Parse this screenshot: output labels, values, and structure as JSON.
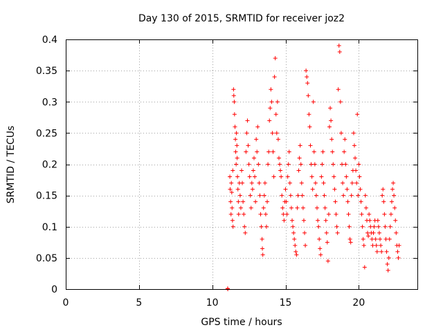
{
  "chart_data": {
    "type": "scatter",
    "title": "Day 130 of 2015, SRMTID for receiver joz2",
    "xlabel": "GPS time / hours",
    "ylabel": "SRMTID / TECUs",
    "xlim": [
      0,
      24
    ],
    "ylim": [
      0,
      0.4
    ],
    "xticks": [
      0,
      5,
      10,
      15,
      20
    ],
    "xtick_labels": [
      "0",
      "5",
      "10",
      "15",
      "20"
    ],
    "yticks": [
      0,
      0.05,
      0.1,
      0.15,
      0.2,
      0.25,
      0.3,
      0.35,
      0.4
    ],
    "ytick_labels": [
      "0",
      "0.05",
      "0.1",
      "0.15",
      "0.2",
      "0.25",
      "0.3",
      "0.35",
      "0.4"
    ],
    "grid": true,
    "legend": "none",
    "marker": "plus",
    "color": "#ff0000",
    "series": [
      {
        "points": [
          [
            11.05,
            0.001
          ],
          [
            11.06,
            0.0
          ],
          [
            11.2,
            0.18
          ],
          [
            11.22,
            0.16
          ],
          [
            11.25,
            0.14
          ],
          [
            11.28,
            0.12
          ],
          [
            11.3,
            0.17
          ],
          [
            11.33,
            0.155
          ],
          [
            11.35,
            0.13
          ],
          [
            11.38,
            0.11
          ],
          [
            11.4,
            0.19
          ],
          [
            11.42,
            0.1
          ],
          [
            11.45,
            0.32
          ],
          [
            11.47,
            0.31
          ],
          [
            11.5,
            0.3
          ],
          [
            11.52,
            0.28
          ],
          [
            11.55,
            0.26
          ],
          [
            11.58,
            0.24
          ],
          [
            11.6,
            0.22
          ],
          [
            11.63,
            0.2
          ],
          [
            11.65,
            0.25
          ],
          [
            11.68,
            0.23
          ],
          [
            11.7,
            0.21
          ],
          [
            11.72,
            0.18
          ],
          [
            11.75,
            0.16
          ],
          [
            11.78,
            0.14
          ],
          [
            11.8,
            0.12
          ],
          [
            11.85,
            0.17
          ],
          [
            11.9,
            0.15
          ],
          [
            11.95,
            0.13
          ],
          [
            12.0,
            0.19
          ],
          [
            12.05,
            0.17
          ],
          [
            12.1,
            0.14
          ],
          [
            12.15,
            0.12
          ],
          [
            12.2,
            0.1
          ],
          [
            12.25,
            0.09
          ],
          [
            12.3,
            0.22
          ],
          [
            12.35,
            0.25
          ],
          [
            12.4,
            0.27
          ],
          [
            12.45,
            0.23
          ],
          [
            12.5,
            0.2
          ],
          [
            12.55,
            0.18
          ],
          [
            12.6,
            0.15
          ],
          [
            12.65,
            0.13
          ],
          [
            12.7,
            0.17
          ],
          [
            12.75,
            0.16
          ],
          [
            12.8,
            0.19
          ],
          [
            12.85,
            0.21
          ],
          [
            12.9,
            0.18
          ],
          [
            12.95,
            0.14
          ],
          [
            13.0,
            0.24
          ],
          [
            13.05,
            0.22
          ],
          [
            13.1,
            0.26
          ],
          [
            13.15,
            0.2
          ],
          [
            13.2,
            0.17
          ],
          [
            13.25,
            0.15
          ],
          [
            13.3,
            0.12
          ],
          [
            13.35,
            0.1
          ],
          [
            13.4,
            0.08
          ],
          [
            13.42,
            0.065
          ],
          [
            13.45,
            0.055
          ],
          [
            13.5,
            0.13
          ],
          [
            13.55,
            0.15
          ],
          [
            13.6,
            0.17
          ],
          [
            13.65,
            0.12
          ],
          [
            13.7,
            0.1
          ],
          [
            13.75,
            0.14
          ],
          [
            13.8,
            0.2
          ],
          [
            13.85,
            0.22
          ],
          [
            13.9,
            0.27
          ],
          [
            13.95,
            0.29
          ],
          [
            14.0,
            0.32
          ],
          [
            14.05,
            0.3
          ],
          [
            14.1,
            0.25
          ],
          [
            14.15,
            0.22
          ],
          [
            14.2,
            0.18
          ],
          [
            14.25,
            0.34
          ],
          [
            14.3,
            0.37
          ],
          [
            14.35,
            0.28
          ],
          [
            14.4,
            0.25
          ],
          [
            14.45,
            0.3
          ],
          [
            14.5,
            0.24
          ],
          [
            14.55,
            0.21
          ],
          [
            14.6,
            0.2
          ],
          [
            14.65,
            0.19
          ],
          [
            14.7,
            0.18
          ],
          [
            14.75,
            0.15
          ],
          [
            14.8,
            0.13
          ],
          [
            14.85,
            0.12
          ],
          [
            14.9,
            0.11
          ],
          [
            14.95,
            0.14
          ],
          [
            15.0,
            0.16
          ],
          [
            15.05,
            0.14
          ],
          [
            15.1,
            0.12
          ],
          [
            15.15,
            0.18
          ],
          [
            15.2,
            0.2
          ],
          [
            15.25,
            0.22
          ],
          [
            15.3,
            0.17
          ],
          [
            15.35,
            0.15
          ],
          [
            15.4,
            0.13
          ],
          [
            15.45,
            0.11
          ],
          [
            15.5,
            0.1
          ],
          [
            15.55,
            0.09
          ],
          [
            15.6,
            0.08
          ],
          [
            15.65,
            0.07
          ],
          [
            15.7,
            0.06
          ],
          [
            15.75,
            0.055
          ],
          [
            15.8,
            0.13
          ],
          [
            15.85,
            0.15
          ],
          [
            15.9,
            0.19
          ],
          [
            15.95,
            0.21
          ],
          [
            16.0,
            0.23
          ],
          [
            16.05,
            0.2
          ],
          [
            16.1,
            0.17
          ],
          [
            16.15,
            0.15
          ],
          [
            16.2,
            0.13
          ],
          [
            16.25,
            0.11
          ],
          [
            16.3,
            0.09
          ],
          [
            16.35,
            0.07
          ],
          [
            16.4,
            0.35
          ],
          [
            16.45,
            0.34
          ],
          [
            16.5,
            0.33
          ],
          [
            16.55,
            0.31
          ],
          [
            16.6,
            0.28
          ],
          [
            16.65,
            0.26
          ],
          [
            16.7,
            0.23
          ],
          [
            16.75,
            0.2
          ],
          [
            16.8,
            0.18
          ],
          [
            16.85,
            0.16
          ],
          [
            16.9,
            0.3
          ],
          [
            16.95,
            0.22
          ],
          [
            17.0,
            0.2
          ],
          [
            17.05,
            0.17
          ],
          [
            17.1,
            0.15
          ],
          [
            17.15,
            0.13
          ],
          [
            17.2,
            0.11
          ],
          [
            17.25,
            0.1
          ],
          [
            17.3,
            0.08
          ],
          [
            17.35,
            0.065
          ],
          [
            17.4,
            0.055
          ],
          [
            17.45,
            0.18
          ],
          [
            17.5,
            0.2
          ],
          [
            17.55,
            0.22
          ],
          [
            17.6,
            0.17
          ],
          [
            17.65,
            0.15
          ],
          [
            17.7,
            0.13
          ],
          [
            17.75,
            0.11
          ],
          [
            17.8,
            0.09
          ],
          [
            17.85,
            0.075
          ],
          [
            17.9,
            0.045
          ],
          [
            17.95,
            0.12
          ],
          [
            18.0,
            0.26
          ],
          [
            18.05,
            0.29
          ],
          [
            18.1,
            0.27
          ],
          [
            18.15,
            0.24
          ],
          [
            18.2,
            0.22
          ],
          [
            18.25,
            0.2
          ],
          [
            18.3,
            0.18
          ],
          [
            18.35,
            0.16
          ],
          [
            18.4,
            0.14
          ],
          [
            18.45,
            0.12
          ],
          [
            18.5,
            0.1
          ],
          [
            18.55,
            0.09
          ],
          [
            18.6,
            0.32
          ],
          [
            18.65,
            0.39
          ],
          [
            18.7,
            0.38
          ],
          [
            18.75,
            0.3
          ],
          [
            18.8,
            0.25
          ],
          [
            18.85,
            0.2
          ],
          [
            18.9,
            0.17
          ],
          [
            18.95,
            0.15
          ],
          [
            19.0,
            0.22
          ],
          [
            19.05,
            0.24
          ],
          [
            19.1,
            0.2
          ],
          [
            19.15,
            0.18
          ],
          [
            19.2,
            0.16
          ],
          [
            19.25,
            0.14
          ],
          [
            19.3,
            0.12
          ],
          [
            19.35,
            0.1
          ],
          [
            19.4,
            0.08
          ],
          [
            19.45,
            0.075
          ],
          [
            19.5,
            0.15
          ],
          [
            19.55,
            0.17
          ],
          [
            19.6,
            0.19
          ],
          [
            19.65,
            0.25
          ],
          [
            19.7,
            0.23
          ],
          [
            19.75,
            0.21
          ],
          [
            19.8,
            0.19
          ],
          [
            19.85,
            0.17
          ],
          [
            19.9,
            0.28
          ],
          [
            19.95,
            0.15
          ],
          [
            20.0,
            0.2
          ],
          [
            20.05,
            0.18
          ],
          [
            20.1,
            0.16
          ],
          [
            20.15,
            0.14
          ],
          [
            20.2,
            0.12
          ],
          [
            20.25,
            0.1
          ],
          [
            20.3,
            0.08
          ],
          [
            20.35,
            0.07
          ],
          [
            20.4,
            0.035
          ],
          [
            20.45,
            0.15
          ],
          [
            20.5,
            0.13
          ],
          [
            20.55,
            0.11
          ],
          [
            20.6,
            0.09
          ],
          [
            20.65,
            0.085
          ],
          [
            20.7,
            0.12
          ],
          [
            20.75,
            0.11
          ],
          [
            20.8,
            0.1
          ],
          [
            20.85,
            0.09
          ],
          [
            20.9,
            0.08
          ],
          [
            20.95,
            0.07
          ],
          [
            21.0,
            0.09
          ],
          [
            21.05,
            0.1
          ],
          [
            21.1,
            0.11
          ],
          [
            21.15,
            0.08
          ],
          [
            21.2,
            0.07
          ],
          [
            21.25,
            0.06
          ],
          [
            21.3,
            0.11
          ],
          [
            21.35,
            0.1
          ],
          [
            21.4,
            0.09
          ],
          [
            21.45,
            0.08
          ],
          [
            21.5,
            0.07
          ],
          [
            21.55,
            0.06
          ],
          [
            21.6,
            0.15
          ],
          [
            21.65,
            0.16
          ],
          [
            21.7,
            0.14
          ],
          [
            21.75,
            0.12
          ],
          [
            21.8,
            0.1
          ],
          [
            21.85,
            0.08
          ],
          [
            21.9,
            0.06
          ],
          [
            21.95,
            0.04
          ],
          [
            22.0,
            0.03
          ],
          [
            22.05,
            0.05
          ],
          [
            22.1,
            0.08
          ],
          [
            22.15,
            0.1
          ],
          [
            22.2,
            0.12
          ],
          [
            22.25,
            0.14
          ],
          [
            22.3,
            0.16
          ],
          [
            22.35,
            0.17
          ],
          [
            22.4,
            0.15
          ],
          [
            22.45,
            0.13
          ],
          [
            22.5,
            0.11
          ],
          [
            22.55,
            0.09
          ],
          [
            22.6,
            0.07
          ],
          [
            22.65,
            0.06
          ],
          [
            22.7,
            0.05
          ],
          [
            22.75,
            0.07
          ]
        ]
      }
    ]
  }
}
